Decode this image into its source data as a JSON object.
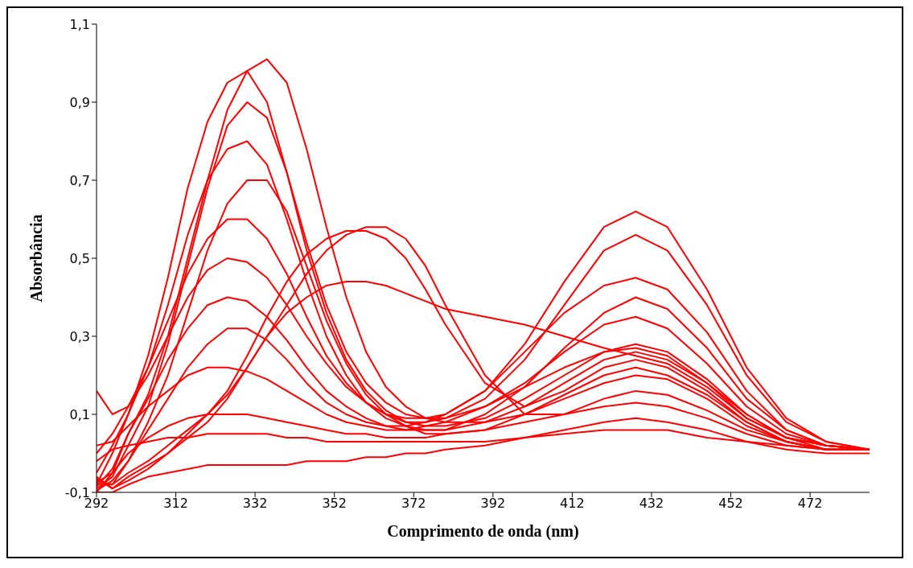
{
  "chart_data": {
    "type": "line",
    "xlabel": "Comprimento de onda (nm)",
    "ylabel": "Absorbância",
    "x": [
      292,
      296,
      300,
      305,
      310,
      315,
      320,
      325,
      330,
      335,
      340,
      345,
      350,
      355,
      360,
      365,
      370,
      375,
      380,
      390,
      400,
      410,
      420,
      428,
      436,
      446,
      456,
      466,
      476,
      487
    ],
    "xlim": [
      292,
      487
    ],
    "xticks": [
      292,
      312,
      332,
      352,
      372,
      392,
      412,
      432,
      452,
      472
    ],
    "ylim": [
      -0.1,
      1.1
    ],
    "yticks": [
      {
        "value": -0.1,
        "label": "-0,1"
      },
      {
        "value": 0.1,
        "label": "0,1"
      },
      {
        "value": 0.3,
        "label": "0,3"
      },
      {
        "value": 0.5,
        "label": "0,5"
      },
      {
        "value": 0.7,
        "label": "0,7"
      },
      {
        "value": 0.9,
        "label": "0,9"
      },
      {
        "value": 1.1,
        "label": "1,1"
      }
    ],
    "grid": false,
    "marker": "none",
    "line_style": "solid",
    "series": [
      {
        "color": "#ff0000",
        "values": [
          -0.1,
          -0.05,
          0.05,
          0.15,
          0.3,
          0.5,
          0.7,
          0.88,
          0.98,
          1.01,
          0.95,
          0.78,
          0.58,
          0.4,
          0.26,
          0.17,
          0.12,
          0.09,
          0.08,
          0.08,
          0.1,
          0.14,
          0.18,
          0.2,
          0.19,
          0.14,
          0.07,
          0.03,
          0.01,
          0.01
        ]
      },
      {
        "color": "#ff0000",
        "values": [
          -0.08,
          0.0,
          0.1,
          0.25,
          0.45,
          0.68,
          0.85,
          0.95,
          0.98,
          0.9,
          0.72,
          0.52,
          0.36,
          0.24,
          0.16,
          0.11,
          0.08,
          0.07,
          0.07,
          0.09,
          0.14,
          0.2,
          0.26,
          0.28,
          0.26,
          0.19,
          0.1,
          0.04,
          0.02,
          0.01
        ]
      },
      {
        "color": "#ff0000",
        "values": [
          -0.09,
          -0.06,
          0.02,
          0.12,
          0.28,
          0.48,
          0.68,
          0.84,
          0.9,
          0.86,
          0.72,
          0.54,
          0.38,
          0.26,
          0.18,
          0.13,
          0.1,
          0.09,
          0.09,
          0.12,
          0.18,
          0.26,
          0.33,
          0.35,
          0.32,
          0.23,
          0.12,
          0.05,
          0.02,
          0.01
        ]
      },
      {
        "color": "#ff0000",
        "values": [
          -0.05,
          0.02,
          0.1,
          0.22,
          0.38,
          0.56,
          0.7,
          0.78,
          0.8,
          0.74,
          0.6,
          0.44,
          0.3,
          0.2,
          0.13,
          0.09,
          0.07,
          0.06,
          0.06,
          0.1,
          0.17,
          0.27,
          0.36,
          0.4,
          0.37,
          0.27,
          0.14,
          0.06,
          0.02,
          0.01
        ]
      },
      {
        "color": "#ff0000",
        "values": [
          -0.095,
          -0.07,
          -0.02,
          0.08,
          0.2,
          0.36,
          0.52,
          0.64,
          0.7,
          0.7,
          0.62,
          0.48,
          0.34,
          0.23,
          0.15,
          0.1,
          0.07,
          0.05,
          0.05,
          0.06,
          0.1,
          0.15,
          0.2,
          0.22,
          0.2,
          0.15,
          0.08,
          0.03,
          0.01,
          0.01
        ]
      },
      {
        "color": "#ff0000",
        "values": [
          0.0,
          0.05,
          0.12,
          0.22,
          0.34,
          0.46,
          0.55,
          0.6,
          0.6,
          0.55,
          0.46,
          0.35,
          0.25,
          0.18,
          0.13,
          0.1,
          0.08,
          0.08,
          0.09,
          0.14,
          0.24,
          0.38,
          0.52,
          0.56,
          0.52,
          0.38,
          0.2,
          0.08,
          0.03,
          0.01
        ]
      },
      {
        "color": "#ff0000",
        "values": [
          0.16,
          0.1,
          0.12,
          0.2,
          0.3,
          0.4,
          0.47,
          0.5,
          0.49,
          0.45,
          0.38,
          0.3,
          0.23,
          0.17,
          0.13,
          0.1,
          0.09,
          0.09,
          0.1,
          0.16,
          0.28,
          0.44,
          0.58,
          0.62,
          0.58,
          0.42,
          0.22,
          0.09,
          0.03,
          0.01
        ]
      },
      {
        "color": "#ff0000",
        "values": [
          -0.085,
          -0.04,
          0.05,
          0.14,
          0.24,
          0.32,
          0.38,
          0.4,
          0.39,
          0.35,
          0.29,
          0.22,
          0.16,
          0.12,
          0.09,
          0.07,
          0.06,
          0.06,
          0.06,
          0.08,
          0.12,
          0.18,
          0.24,
          0.26,
          0.24,
          0.18,
          0.09,
          0.04,
          0.01,
          0.01
        ]
      },
      {
        "color": "#ff0000",
        "values": [
          -0.078,
          -0.08,
          -0.02,
          0.06,
          0.14,
          0.22,
          0.28,
          0.32,
          0.32,
          0.29,
          0.24,
          0.18,
          0.13,
          0.1,
          0.08,
          0.07,
          0.07,
          0.08,
          0.1,
          0.16,
          0.26,
          0.36,
          0.43,
          0.45,
          0.42,
          0.31,
          0.16,
          0.06,
          0.02,
          0.01
        ]
      },
      {
        "color": "#ff0000",
        "values": [
          0.02,
          0.03,
          0.07,
          0.12,
          0.16,
          0.2,
          0.22,
          0.22,
          0.21,
          0.19,
          0.16,
          0.13,
          0.1,
          0.08,
          0.07,
          0.06,
          0.06,
          0.07,
          0.08,
          0.12,
          0.17,
          0.22,
          0.26,
          0.27,
          0.25,
          0.18,
          0.1,
          0.04,
          0.02,
          0.01
        ]
      },
      {
        "color": "#ff0000",
        "values": [
          -0.075,
          -0.05,
          0.0,
          0.04,
          0.07,
          0.09,
          0.1,
          0.1,
          0.1,
          0.09,
          0.08,
          0.07,
          0.06,
          0.05,
          0.05,
          0.04,
          0.04,
          0.04,
          0.05,
          0.06,
          0.08,
          0.1,
          0.12,
          0.13,
          0.12,
          0.09,
          0.05,
          0.02,
          0.01,
          0.01
        ]
      },
      {
        "color": "#ff0000",
        "values": [
          -0.02,
          0.01,
          0.02,
          0.03,
          0.04,
          0.04,
          0.05,
          0.05,
          0.05,
          0.05,
          0.04,
          0.04,
          0.03,
          0.03,
          0.03,
          0.03,
          0.03,
          0.03,
          0.03,
          0.03,
          0.04,
          0.05,
          0.06,
          0.06,
          0.06,
          0.04,
          0.03,
          0.02,
          0.01,
          0.01
        ]
      },
      {
        "color": "#ff0000",
        "values": [
          -0.1,
          -0.1,
          -0.08,
          -0.06,
          -0.05,
          -0.04,
          -0.03,
          -0.03,
          -0.03,
          -0.03,
          -0.03,
          -0.02,
          -0.02,
          -0.02,
          -0.01,
          -0.01,
          0.0,
          0.0,
          0.01,
          0.02,
          0.04,
          0.06,
          0.08,
          0.09,
          0.08,
          0.06,
          0.03,
          0.01,
          0.0,
          0.0
        ]
      },
      {
        "color": "#ff0000",
        "values": [
          -0.07,
          -0.08,
          -0.05,
          -0.02,
          0.02,
          0.06,
          0.1,
          0.15,
          0.22,
          0.3,
          0.38,
          0.46,
          0.52,
          0.56,
          0.58,
          0.58,
          0.55,
          0.48,
          0.38,
          0.2,
          0.1,
          0.1,
          0.14,
          0.16,
          0.15,
          0.11,
          0.06,
          0.03,
          0.01,
          0.01
        ]
      },
      {
        "color": "#ff0000",
        "values": [
          -0.065,
          -0.09,
          -0.07,
          -0.04,
          0.0,
          0.05,
          0.1,
          0.16,
          0.25,
          0.35,
          0.44,
          0.51,
          0.55,
          0.57,
          0.57,
          0.55,
          0.5,
          0.42,
          0.33,
          0.18,
          0.12,
          0.16,
          0.22,
          0.24,
          0.22,
          0.16,
          0.08,
          0.03,
          0.01,
          0.01
        ]
      },
      {
        "color": "#ff0000",
        "values": [
          -0.06,
          -0.09,
          -0.06,
          -0.03,
          0.0,
          0.04,
          0.08,
          0.14,
          0.22,
          0.3,
          0.36,
          0.4,
          0.43,
          0.44,
          0.44,
          0.43,
          0.41,
          0.39,
          0.37,
          0.35,
          0.33,
          0.3,
          0.27,
          0.25,
          0.23,
          0.17,
          0.09,
          0.04,
          0.02,
          0.01
        ]
      }
    ]
  }
}
